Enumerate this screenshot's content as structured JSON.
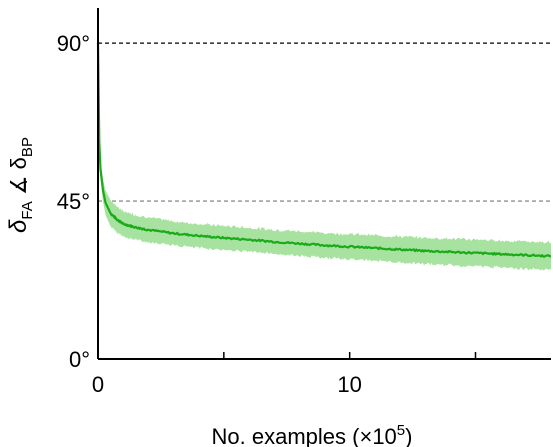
{
  "chart_data": {
    "type": "line",
    "title": "",
    "xlabel": "No. examples (×10",
    "xlabel_sup": "5",
    "xlabel_close": ")",
    "ylabel": "δ",
    "ylabel_sub1": "FA",
    "ylabel_angle": " ∡ δ",
    "ylabel_sub2": "BP",
    "xlim": [
      0,
      18
    ],
    "ylim": [
      0,
      100
    ],
    "x_ticks": [
      {
        "value": 0,
        "label": "0"
      },
      {
        "value": 5,
        "label": ""
      },
      {
        "value": 10,
        "label": "10"
      },
      {
        "value": 15,
        "label": ""
      }
    ],
    "y_ticks": [
      {
        "value": 0,
        "label": "0°"
      },
      {
        "value": 45,
        "label": "45°"
      },
      {
        "value": 90,
        "label": "90°"
      }
    ],
    "reference_lines": [
      {
        "y": 90,
        "style": "dashed",
        "color": "#000000"
      },
      {
        "y": 45,
        "style": "dashed",
        "color": "#777777"
      }
    ],
    "series": [
      {
        "color": "#1aaa1a",
        "band_color": "#a8e2a0",
        "x": [
          0,
          0.05,
          0.1,
          0.2,
          0.3,
          0.5,
          0.75,
          1,
          1.5,
          2,
          3,
          4,
          5,
          6,
          7,
          8,
          9,
          10,
          11,
          12,
          13,
          14,
          15,
          16,
          17,
          18
        ],
        "y": [
          90,
          62,
          54,
          48,
          44.5,
          41.5,
          39.8,
          38.5,
          37.5,
          36.8,
          35.8,
          35.1,
          34.5,
          34.0,
          33.4,
          32.9,
          32.4,
          32.0,
          31.6,
          31.2,
          30.8,
          30.5,
          30.2,
          29.9,
          29.6,
          29.3
        ],
        "band": [
          0,
          2,
          2.8,
          3.2,
          3.5,
          3.7,
          3.7,
          3.6,
          3.5,
          3.5,
          3.4,
          3.4,
          3.4,
          3.4,
          3.4,
          3.5,
          3.5,
          3.6,
          3.6,
          3.7,
          3.7,
          3.8,
          3.8,
          3.8,
          3.9,
          3.9
        ]
      }
    ],
    "grid": false,
    "legend": "none"
  }
}
